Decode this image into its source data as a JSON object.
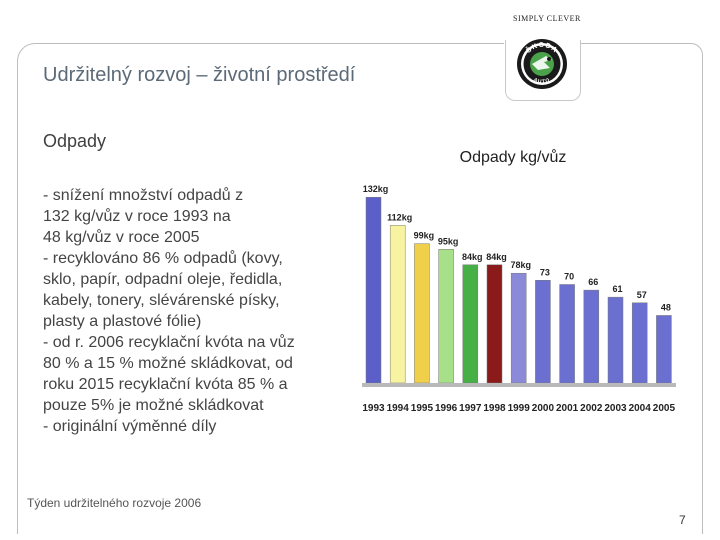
{
  "header": {
    "tagline": "SIMPLY CLEVER",
    "logo_text_top": "ŠKODA",
    "logo_text_bottom": "AUTO"
  },
  "slide": {
    "title": "Udržitelný rozvoj – životní prostředí",
    "subtitle": "Odpady",
    "body_lines": [
      "- snížení množství odpadů z",
      "132 kg/vůz v roce 1993 na",
      "48 kg/vůz v roce 2005",
      "- recyklováno 86 % odpadů (kovy,",
      "sklo, papír, odpadní oleje, ředidla,",
      "kabely, tonery, slévárenské písky,",
      "plasty a plastové fólie)",
      "- od r. 2006 recyklační kvóta na vůz",
      "80 % a 15 % možné skládkovat, od",
      "roku 2015 recyklační kvóta 85 % a",
      "pouze 5% je možné skládkovat",
      "- originální výměnné díly"
    ],
    "footer": "Týden udržitelného rozvoje 2006",
    "page_number": "7"
  },
  "chart_data": {
    "type": "bar",
    "title": "Odpady kg/vůz",
    "categories": [
      "1993",
      "1994",
      "1995",
      "1996",
      "1997",
      "1998",
      "1999",
      "2000",
      "2001",
      "2002",
      "2003",
      "2004",
      "2005"
    ],
    "values": [
      132,
      112,
      99,
      95,
      84,
      84,
      78,
      73,
      70,
      66,
      61,
      57,
      48
    ],
    "data_labels": [
      "132kg",
      "112kg",
      "99kg",
      "95kg",
      "84kg",
      "84kg",
      "78kg",
      "73",
      "70",
      "66",
      "61",
      "57",
      "48"
    ],
    "bar_colors": [
      "#5b5fc7",
      "#f7f3a0",
      "#f0d04a",
      "#a8e08a",
      "#46b046",
      "#8b1a1a",
      "#8a8ad8",
      "#6b6fd0",
      "#6b6fd0",
      "#6b6fd0",
      "#6b6fd0",
      "#6b6fd0",
      "#6b6fd0"
    ],
    "ylim": [
      0,
      140
    ],
    "grid": false
  }
}
